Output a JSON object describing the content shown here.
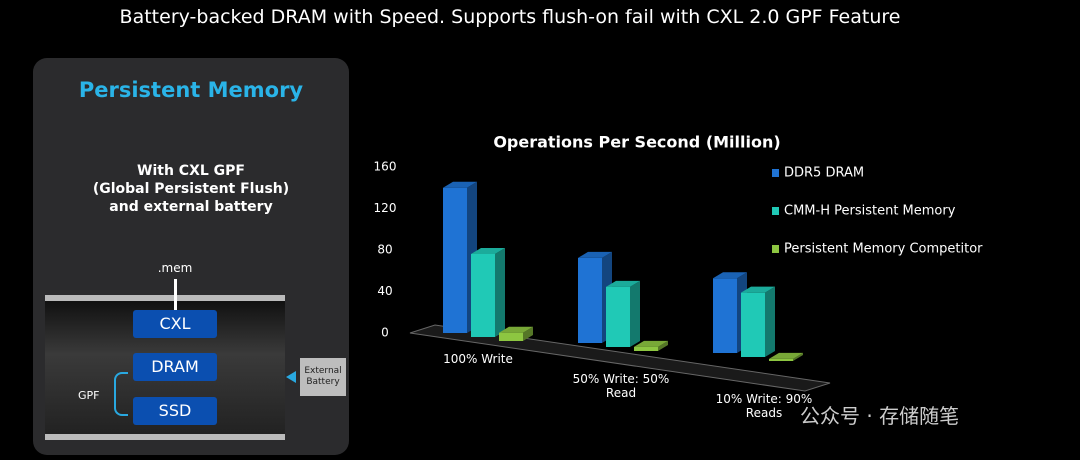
{
  "slide": {
    "title": "Battery-backed DRAM with Speed. Supports flush-on fail with CXL 2.0 GPF Feature"
  },
  "diagram": {
    "heading": "Persistent Memory",
    "description": [
      "With CXL GPF",
      "(Global Persistent Flush)",
      "and external battery"
    ],
    "interface": ".mem",
    "boxes": [
      "CXL",
      "DRAM",
      "SSD"
    ],
    "bracket_label": "GPF",
    "battery": "External Battery"
  },
  "watermark": "公众号 · 存储随笔",
  "chart_data": {
    "type": "bar",
    "title": "Operations Per Second (Million)",
    "categories": [
      "100% Write",
      "50% Write: 50% Read",
      "10% Write: 90% Reads"
    ],
    "series": [
      {
        "name": "DDR5 DRAM",
        "color": "#1f73d4",
        "values": [
          140,
          82,
          72
        ]
      },
      {
        "name": "CMM-H Persistent Memory",
        "color": "#20c9b6",
        "values": [
          80,
          58,
          62
        ]
      },
      {
        "name": "Persistent Memory Competitor",
        "color": "#8dc641",
        "values": [
          8,
          4,
          2
        ]
      }
    ],
    "ylim": [
      0,
      160
    ],
    "yticks": [
      0,
      40,
      80,
      120,
      160
    ],
    "grid": false,
    "legend": "right"
  }
}
